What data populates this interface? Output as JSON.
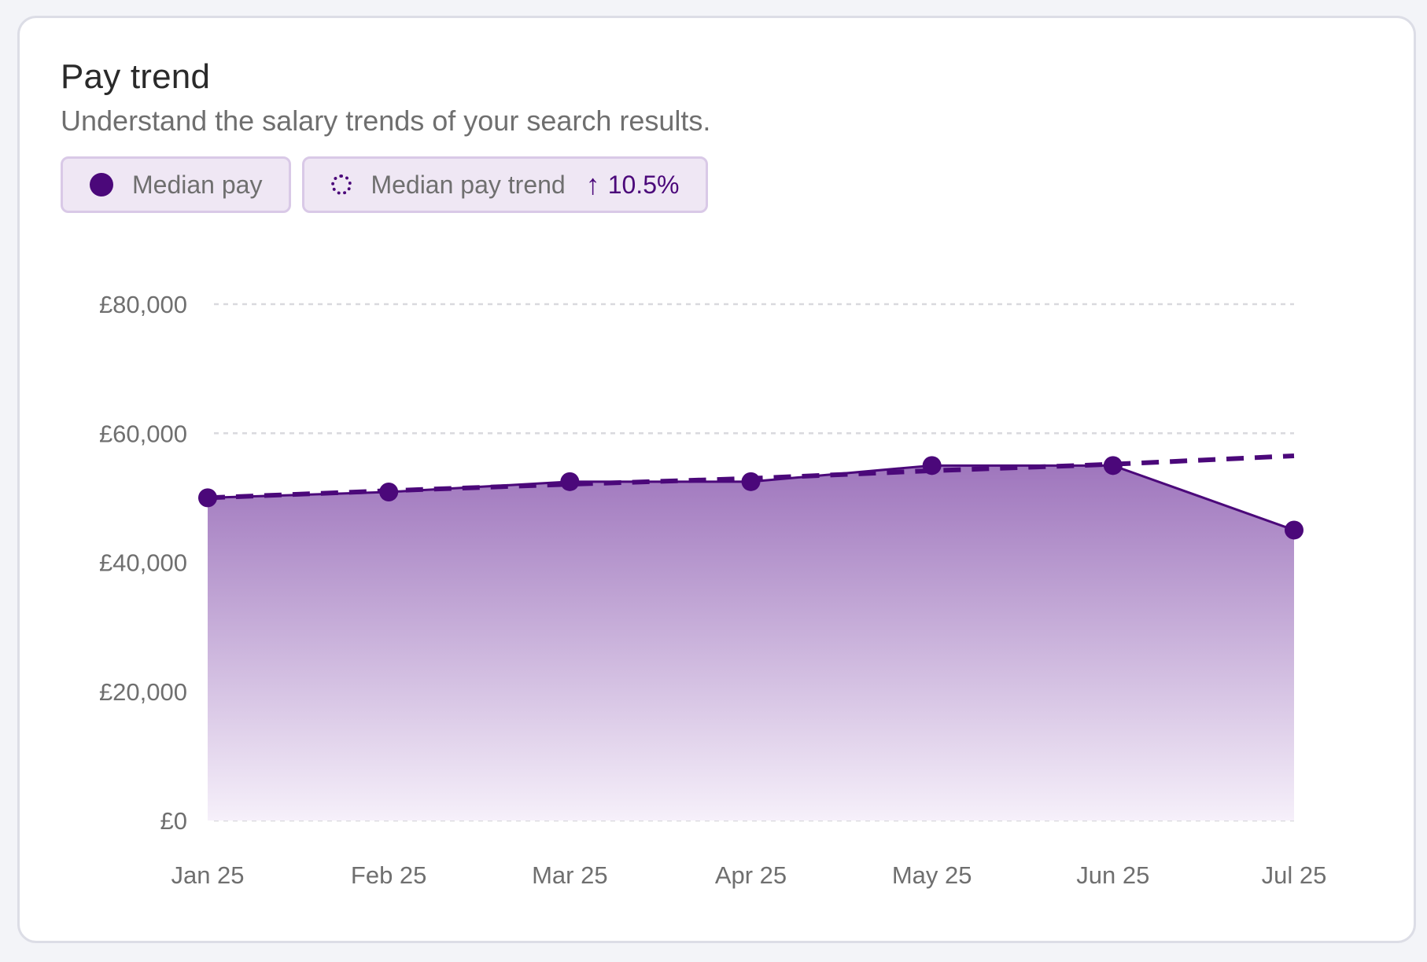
{
  "card": {
    "title": "Pay trend",
    "subtitle": "Understand the salary trends of your search results."
  },
  "legend": {
    "median_label": "Median pay",
    "trend_label": "Median pay trend",
    "trend_change": "10.5%",
    "trend_icon": "arrow-up-icon"
  },
  "colors": {
    "accent": "#4b087a",
    "area_top": "#9f76bd",
    "grid": "#d9d9de"
  },
  "chart_data": {
    "type": "area",
    "categories": [
      "Jan 25",
      "Feb 25",
      "Mar 25",
      "Apr 25",
      "May 25",
      "Jun 25",
      "Jul 25"
    ],
    "series": [
      {
        "name": "Median pay",
        "values": [
          50000,
          50900,
          52500,
          52500,
          55000,
          55000,
          45000
        ]
      },
      {
        "name": "Median pay trend",
        "values": [
          50000,
          51100,
          52100,
          53000,
          54200,
          55200,
          56500
        ],
        "style": "dashed"
      }
    ],
    "ylim": [
      0,
      80000
    ],
    "yticks": [
      0,
      20000,
      40000,
      60000,
      80000
    ],
    "ytick_labels": [
      "£0",
      "£20,000",
      "£40,000",
      "£60,000",
      "£80,000"
    ],
    "grid": true
  }
}
